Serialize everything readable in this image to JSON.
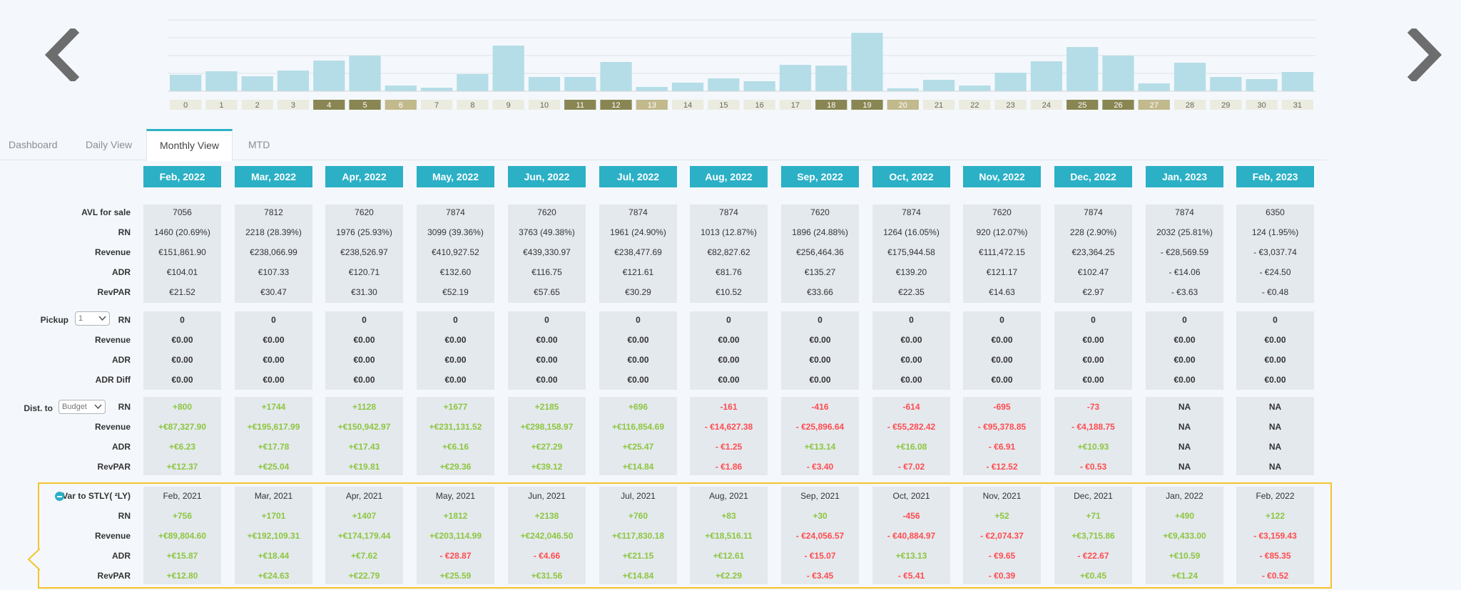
{
  "tabs": [
    {
      "label": "Dashboard"
    },
    {
      "label": "Daily View"
    },
    {
      "label": "Monthly View"
    },
    {
      "label": "MTD"
    }
  ],
  "chart_data": {
    "type": "bar",
    "categories": [
      "0",
      "1",
      "2",
      "3",
      "4",
      "5",
      "6",
      "7",
      "8",
      "9",
      "10",
      "11",
      "12",
      "13",
      "14",
      "15",
      "16",
      "17",
      "18",
      "19",
      "20",
      "21",
      "22",
      "23",
      "24",
      "25",
      "26",
      "27",
      "28",
      "29",
      "30",
      "31"
    ],
    "values": [
      23,
      28,
      21,
      29,
      43,
      50,
      8,
      5,
      24,
      64,
      20,
      20,
      41,
      6,
      12,
      18,
      14,
      37,
      36,
      82,
      4,
      16,
      8,
      26,
      42,
      62,
      50,
      11,
      40,
      20,
      17,
      27
    ],
    "ylim": [
      0,
      100
    ],
    "grid": true,
    "bar_color": "#b5dde7",
    "label_colors": [
      "#ebebdf",
      "#ebebdf",
      "#ebebdf",
      "#ebebdf",
      "#8a8653",
      "#8a8653",
      "#c2b98d",
      "#ebebdf",
      "#ebebdf",
      "#ebebdf",
      "#ebebdf",
      "#8a8653",
      "#8a8653",
      "#c2b98d",
      "#ebebdf",
      "#ebebdf",
      "#ebebdf",
      "#ebebdf",
      "#8a8653",
      "#8a8653",
      "#c2b98d",
      "#ebebdf",
      "#ebebdf",
      "#ebebdf",
      "#ebebdf",
      "#8a8653",
      "#8a8653",
      "#c2b98d",
      "#ebebdf",
      "#ebebdf",
      "#ebebdf",
      "#ebebdf"
    ],
    "label_text_colors": [
      "#666",
      "#666",
      "#666",
      "#666",
      "#fff",
      "#fff",
      "#fff",
      "#666",
      "#666",
      "#666",
      "#666",
      "#fff",
      "#fff",
      "#fff",
      "#666",
      "#666",
      "#666",
      "#666",
      "#fff",
      "#fff",
      "#fff",
      "#666",
      "#666",
      "#666",
      "#666",
      "#fff",
      "#fff",
      "#fff",
      "#666",
      "#666",
      "#666",
      "#666"
    ]
  },
  "months": [
    "Feb, 2022",
    "Mar, 2022",
    "Apr, 2022",
    "May, 2022",
    "Jun, 2022",
    "Jul, 2022",
    "Aug, 2022",
    "Sep, 2022",
    "Oct, 2022",
    "Nov, 2022",
    "Dec, 2022",
    "Jan, 2023",
    "Feb, 2023"
  ],
  "colors": {
    "accent": "#2bb0c6",
    "positive": "#8dc63f",
    "negative": "#ff4d4f",
    "highlight": "#f5c22d"
  },
  "sections": {
    "otb": {
      "rows": [
        {
          "label": "AVL for sale",
          "style": "plain",
          "values": [
            "7056",
            "7812",
            "7620",
            "7874",
            "7620",
            "7874",
            "7874",
            "7620",
            "7874",
            "7620",
            "7874",
            "7874",
            "6350"
          ]
        },
        {
          "label": "RN",
          "style": "plain",
          "values": [
            "1460 (20.69%)",
            "2218 (28.39%)",
            "1976 (25.93%)",
            "3099 (39.36%)",
            "3763 (49.38%)",
            "1961 (24.90%)",
            "1013 (12.87%)",
            "1896 (24.88%)",
            "1264 (16.05%)",
            "920 (12.07%)",
            "228 (2.90%)",
            "2032 (25.81%)",
            "124 (1.95%)"
          ]
        },
        {
          "label": "Revenue",
          "style": "plain",
          "values": [
            "€151,861.90",
            "€238,066.99",
            "€238,526.97",
            "€410,927.52",
            "€439,330.97",
            "€238,477.69",
            "€82,827.62",
            "€256,464.36",
            "€175,944.58",
            "€111,472.15",
            "€23,364.25",
            "- €28,569.59",
            "- €3,037.74"
          ]
        },
        {
          "label": "ADR",
          "style": "plain",
          "values": [
            "€104.01",
            "€107.33",
            "€120.71",
            "€132.60",
            "€116.75",
            "€121.61",
            "€81.76",
            "€135.27",
            "€139.20",
            "€121.17",
            "€102.47",
            "- €14.06",
            "- €24.50"
          ]
        },
        {
          "label": "RevPAR",
          "style": "plain",
          "values": [
            "€21.52",
            "€30.47",
            "€31.30",
            "€52.19",
            "€57.65",
            "€30.29",
            "€10.52",
            "€33.66",
            "€22.35",
            "€14.63",
            "€2.97",
            "- €3.63",
            "- €0.48"
          ]
        }
      ]
    },
    "pickup": {
      "label": "Pickup",
      "select_value": "1",
      "rows": [
        {
          "label": "RN",
          "style": "bold",
          "values": [
            "0",
            "0",
            "0",
            "0",
            "0",
            "0",
            "0",
            "0",
            "0",
            "0",
            "0",
            "0",
            "0"
          ]
        },
        {
          "label": "Revenue",
          "style": "bold",
          "values": [
            "€0.00",
            "€0.00",
            "€0.00",
            "€0.00",
            "€0.00",
            "€0.00",
            "€0.00",
            "€0.00",
            "€0.00",
            "€0.00",
            "€0.00",
            "€0.00",
            "€0.00"
          ]
        },
        {
          "label": "ADR",
          "style": "bold",
          "values": [
            "€0.00",
            "€0.00",
            "€0.00",
            "€0.00",
            "€0.00",
            "€0.00",
            "€0.00",
            "€0.00",
            "€0.00",
            "€0.00",
            "€0.00",
            "€0.00",
            "€0.00"
          ]
        },
        {
          "label": "ADR Diff",
          "style": "bold",
          "values": [
            "€0.00",
            "€0.00",
            "€0.00",
            "€0.00",
            "€0.00",
            "€0.00",
            "€0.00",
            "€0.00",
            "€0.00",
            "€0.00",
            "€0.00",
            "€0.00",
            "€0.00"
          ]
        }
      ]
    },
    "dist": {
      "label": "Dist. to",
      "select_value": "Budget",
      "rows": [
        {
          "label": "RN",
          "style": "signed",
          "values": [
            "+800",
            "+1744",
            "+1128",
            "+1677",
            "+2185",
            "+696",
            "-161",
            "-416",
            "-614",
            "-695",
            "-73",
            "NA",
            "NA"
          ]
        },
        {
          "label": "Revenue",
          "style": "signed",
          "values": [
            "+€87,327.90",
            "+€195,617.99",
            "+€150,942.97",
            "+€231,131.52",
            "+€298,158.97",
            "+€116,854.69",
            "- €14,627.38",
            "- €25,896.64",
            "- €55,282.42",
            "- €95,378.85",
            "- €4,188.75",
            "NA",
            "NA"
          ]
        },
        {
          "label": "ADR",
          "style": "signed",
          "values": [
            "+€6.23",
            "+€17.78",
            "+€17.43",
            "+€6.16",
            "+€27.29",
            "+€25.47",
            "- €1.25",
            "+€13.14",
            "+€16.08",
            "- €6.91",
            "+€10.93",
            "NA",
            "NA"
          ]
        },
        {
          "label": "RevPAR",
          "style": "signed",
          "values": [
            "+€12.37",
            "+€25.04",
            "+€19.81",
            "+€29.36",
            "+€39.12",
            "+€14.84",
            "- €1.86",
            "- €3.40",
            "- €7.02",
            "- €12.52",
            "- €0.53",
            "NA",
            "NA"
          ]
        }
      ]
    },
    "stly": {
      "label": "Var to STLY( ²LY)",
      "months": [
        "Feb, 2021",
        "Mar, 2021",
        "Apr, 2021",
        "May, 2021",
        "Jun, 2021",
        "Jul, 2021",
        "Aug, 2021",
        "Sep, 2021",
        "Oct, 2021",
        "Nov, 2021",
        "Dec, 2021",
        "Jan, 2022",
        "Feb, 2022"
      ],
      "rows": [
        {
          "label": "RN",
          "style": "signed",
          "values": [
            "+756",
            "+1701",
            "+1407",
            "+1812",
            "+2138",
            "+760",
            "+83",
            "+30",
            "-456",
            "+52",
            "+71",
            "+490",
            "+122"
          ]
        },
        {
          "label": "Revenue",
          "style": "signed",
          "values": [
            "+€89,804.60",
            "+€192,109.31",
            "+€174,179.44",
            "+€203,114.99",
            "+€242,046.50",
            "+€117,830.18",
            "+€18,516.11",
            "- €24,056.57",
            "- €40,884.97",
            "- €2,074.37",
            "+€3,715.86",
            "+€9,433.00",
            "- €3,159.43"
          ]
        },
        {
          "label": "ADR",
          "style": "signed",
          "values": [
            "+€15.87",
            "+€18.44",
            "+€7.62",
            "- €28.87",
            "- €4.66",
            "+€21.15",
            "+€12.61",
            "- €15.07",
            "+€13.13",
            "- €9.65",
            "- €22.67",
            "+€10.59",
            "- €85.35"
          ]
        },
        {
          "label": "RevPAR",
          "style": "signed",
          "values": [
            "+€12.80",
            "+€24.63",
            "+€22.79",
            "+€25.59",
            "+€31.56",
            "+€14.84",
            "+€2.29",
            "- €3.45",
            "- €5.41",
            "- €0.39",
            "+€0.45",
            "+€1.24",
            "- €0.52"
          ]
        }
      ]
    }
  }
}
